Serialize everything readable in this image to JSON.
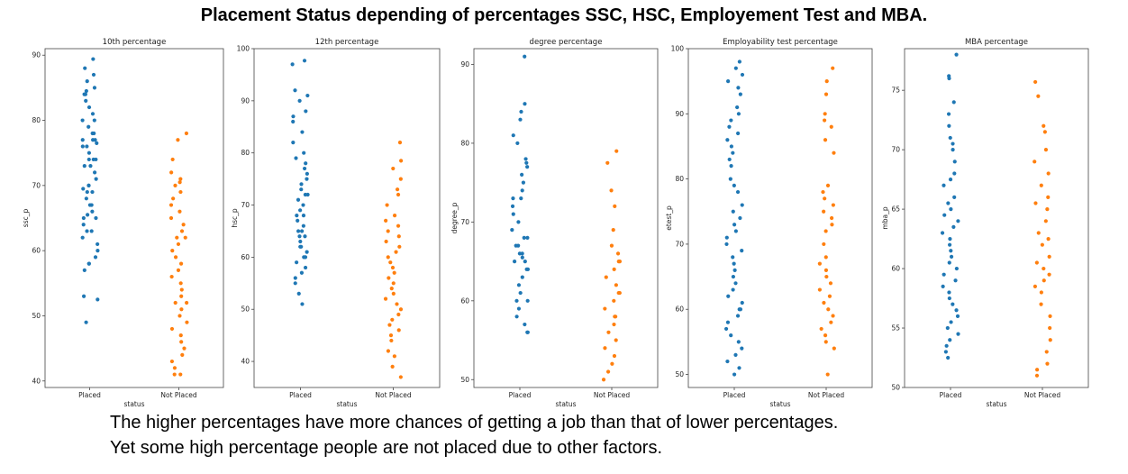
{
  "title": "Placement Status depending of percentages SSC, HSC, Employement Test and MBA.",
  "caption": {
    "line1": "The higher percentages have more chances of getting a job than that of lower percentages.",
    "line2": "Yet some high percentage people are not placed due to other factors."
  },
  "colors": {
    "placed": "#1f77b4",
    "not_placed": "#ff7f0e"
  },
  "chart_data": [
    {
      "type": "scatter",
      "title": "10th percentage",
      "xlabel": "status",
      "ylabel": "ssc_p",
      "categories": [
        "Placed",
        "Not Placed"
      ],
      "yticks": [
        40,
        50,
        60,
        70,
        80,
        90
      ],
      "ylim": [
        39,
        91
      ],
      "series": [
        {
          "name": "Placed",
          "values": [
            89.4,
            88.0,
            87.0,
            86.0,
            85.0,
            84.5,
            84.0,
            84.0,
            83.0,
            82.0,
            81.0,
            80.0,
            80.0,
            79.0,
            78.0,
            78.0,
            77.0,
            77.0,
            77.0,
            76.5,
            76.0,
            76.0,
            75.0,
            74.0,
            74.0,
            74.0,
            73.0,
            73.0,
            72.0,
            71.0,
            70.0,
            70.0,
            69.5,
            69.0,
            69.0,
            68.0,
            67.0,
            67.0,
            66.0,
            65.5,
            65.0,
            65.0,
            64.0,
            63.0,
            63.0,
            62.0,
            61.0,
            60.0,
            59.0,
            58.0,
            58.0,
            57.0,
            53.0,
            52.5,
            49.0
          ]
        },
        {
          "name": "Not Placed",
          "values": [
            78.0,
            77.0,
            74.0,
            72.0,
            71.0,
            70.5,
            70.0,
            69.0,
            68.0,
            67.0,
            66.0,
            65.0,
            64.0,
            63.0,
            62.0,
            62.0,
            61.0,
            60.0,
            59.0,
            58.0,
            57.0,
            56.0,
            55.0,
            54.0,
            53.0,
            52.0,
            52.0,
            51.0,
            50.0,
            49.0,
            48.0,
            47.0,
            46.0,
            45.0,
            44.0,
            43.0,
            42.0,
            41.0,
            41.0
          ]
        }
      ]
    },
    {
      "type": "scatter",
      "title": "12th percentage",
      "xlabel": "status",
      "ylabel": "hsc_p",
      "categories": [
        "Placed",
        "Not Placed"
      ],
      "yticks": [
        40,
        50,
        60,
        70,
        80,
        90,
        100
      ],
      "ylim": [
        35,
        100
      ],
      "series": [
        {
          "name": "Placed",
          "values": [
            97.7,
            97.0,
            92.0,
            91.0,
            90.0,
            88.0,
            87.0,
            86.0,
            84.0,
            82.0,
            80.0,
            79.0,
            78.0,
            77.0,
            76.0,
            75.0,
            74.0,
            73.0,
            72.0,
            72.0,
            71.0,
            70.0,
            69.0,
            68.0,
            68.0,
            67.0,
            66.0,
            65.0,
            65.0,
            64.0,
            64.0,
            63.0,
            62.0,
            62.0,
            61.0,
            60.0,
            60.0,
            59.0,
            58.0,
            57.0,
            56.0,
            55.0,
            53.0,
            51.0
          ]
        },
        {
          "name": "Not Placed",
          "values": [
            82.0,
            78.5,
            77.0,
            75.0,
            73.0,
            72.0,
            70.0,
            68.0,
            67.0,
            66.0,
            65.0,
            64.0,
            63.0,
            62.0,
            61.0,
            60.0,
            59.0,
            58.0,
            57.0,
            56.0,
            55.0,
            54.0,
            53.0,
            52.0,
            51.0,
            50.0,
            49.0,
            48.0,
            47.0,
            46.0,
            45.0,
            44.0,
            42.0,
            41.0,
            39.0,
            37.0
          ]
        }
      ]
    },
    {
      "type": "scatter",
      "title": "degree percentage",
      "xlabel": "status",
      "ylabel": "degree_p",
      "categories": [
        "Placed",
        "Not Placed"
      ],
      "yticks": [
        50,
        60,
        70,
        80,
        90
      ],
      "ylim": [
        49,
        92
      ],
      "series": [
        {
          "name": "Placed",
          "values": [
            91.0,
            85.0,
            84.0,
            83.0,
            81.0,
            80.0,
            78.0,
            77.5,
            77.0,
            76.0,
            75.0,
            74.0,
            73.0,
            73.0,
            72.0,
            71.0,
            70.0,
            69.0,
            68.0,
            68.0,
            67.0,
            67.0,
            66.0,
            66.0,
            65.5,
            65.0,
            65.0,
            64.0,
            64.0,
            63.0,
            62.0,
            61.0,
            60.0,
            60.0,
            59.0,
            58.0,
            57.0,
            56.0,
            56.0
          ]
        },
        {
          "name": "Not Placed",
          "values": [
            79.0,
            77.5,
            74.0,
            72.0,
            69.0,
            67.0,
            66.0,
            65.0,
            65.0,
            64.0,
            63.0,
            62.0,
            61.0,
            61.0,
            60.0,
            59.0,
            58.0,
            58.0,
            57.0,
            56.0,
            55.0,
            54.0,
            53.0,
            52.0,
            51.0,
            50.0
          ]
        }
      ]
    },
    {
      "type": "scatter",
      "title": "Employability test percentage",
      "xlabel": "status",
      "ylabel": "etest_p",
      "categories": [
        "Placed",
        "Not Placed"
      ],
      "yticks": [
        50,
        60,
        70,
        80,
        90,
        100
      ],
      "ylim": [
        48,
        100
      ],
      "series": [
        {
          "name": "Placed",
          "values": [
            98.0,
            97.0,
            96.0,
            95.0,
            94.0,
            93.0,
            91.0,
            90.0,
            89.0,
            88.0,
            87.0,
            86.0,
            85.0,
            84.0,
            83.0,
            82.0,
            80.0,
            79.0,
            78.0,
            76.0,
            75.0,
            74.0,
            73.0,
            72.0,
            71.0,
            70.0,
            69.0,
            68.0,
            67.0,
            66.0,
            65.0,
            64.0,
            63.0,
            62.0,
            61.0,
            60.0,
            60.0,
            59.0,
            58.0,
            57.0,
            56.0,
            55.0,
            54.0,
            53.0,
            52.0,
            51.0,
            50.0
          ]
        },
        {
          "name": "Not Placed",
          "values": [
            97.0,
            95.0,
            93.0,
            90.0,
            89.0,
            88.0,
            86.0,
            84.0,
            79.0,
            78.0,
            77.0,
            76.0,
            75.0,
            74.0,
            73.0,
            72.0,
            70.0,
            68.0,
            67.0,
            66.0,
            65.0,
            64.0,
            63.0,
            62.0,
            61.0,
            60.0,
            59.0,
            58.0,
            57.0,
            56.0,
            55.0,
            54.0,
            50.0
          ]
        }
      ]
    },
    {
      "type": "scatter",
      "title": "MBA percentage",
      "xlabel": "status",
      "ylabel": "mba_p",
      "categories": [
        "Placed",
        "Not Placed"
      ],
      "yticks": [
        50,
        55,
        60,
        65,
        70,
        75
      ],
      "ylim": [
        50,
        78.5
      ],
      "series": [
        {
          "name": "Placed",
          "values": [
            78.0,
            76.2,
            76.0,
            74.0,
            73.0,
            72.0,
            71.0,
            70.5,
            70.0,
            69.0,
            68.0,
            67.5,
            67.0,
            66.0,
            65.5,
            65.0,
            64.5,
            64.0,
            63.5,
            63.0,
            62.5,
            62.0,
            61.5,
            61.0,
            60.5,
            60.0,
            59.5,
            59.0,
            58.5,
            58.0,
            57.5,
            57.0,
            56.5,
            56.0,
            55.5,
            55.0,
            54.5,
            54.0,
            53.5,
            53.0,
            52.5
          ]
        },
        {
          "name": "Not Placed",
          "values": [
            75.7,
            74.5,
            72.0,
            71.5,
            70.0,
            69.0,
            68.0,
            67.0,
            66.0,
            65.5,
            65.0,
            64.0,
            63.0,
            62.5,
            62.0,
            61.0,
            60.5,
            60.0,
            59.5,
            59.0,
            58.5,
            58.0,
            57.0,
            56.0,
            55.0,
            54.0,
            53.0,
            52.0,
            51.5,
            51.0
          ]
        }
      ]
    }
  ]
}
